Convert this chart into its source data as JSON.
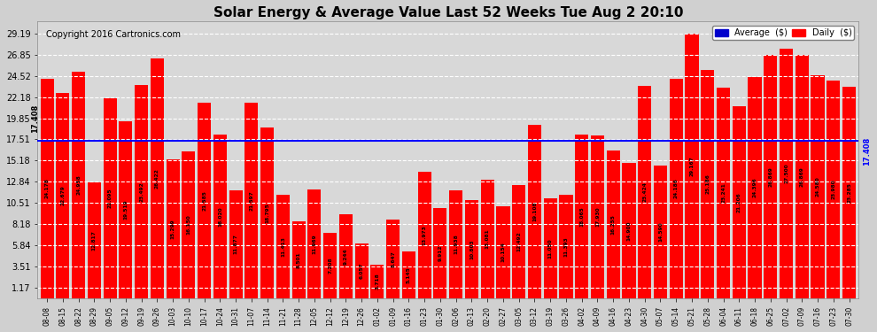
{
  "title": "Solar Energy & Average Value Last 52 Weeks Tue Aug 2 20:10",
  "copyright": "Copyright 2016 Cartronics.com",
  "average_line": 17.408,
  "average_label": "17.408",
  "bar_color": "#ff0000",
  "average_line_color": "#0000ff",
  "background_color": "#d0d0d0",
  "plot_bg_color": "#d8d8d8",
  "grid_color": "#ffffff",
  "yticks": [
    1.17,
    3.51,
    5.84,
    8.18,
    10.51,
    12.84,
    15.18,
    17.51,
    19.85,
    22.18,
    24.52,
    26.85,
    29.19
  ],
  "legend_avg_color": "#0000cc",
  "legend_daily_color": "#ff0000",
  "categories": [
    "08-08",
    "08-15",
    "08-22",
    "08-29",
    "09-05",
    "09-12",
    "09-19",
    "09-26",
    "10-03",
    "10-10",
    "10-17",
    "10-24",
    "10-31",
    "11-07",
    "11-14",
    "11-21",
    "11-28",
    "12-05",
    "12-12",
    "12-19",
    "12-26",
    "01-02",
    "01-09",
    "01-16",
    "01-23",
    "01-30",
    "02-06",
    "02-13",
    "02-20",
    "02-27",
    "03-05",
    "03-12",
    "03-19",
    "03-26",
    "04-02",
    "04-09",
    "04-16",
    "04-23",
    "04-30",
    "05-07",
    "05-14",
    "05-21",
    "05-28",
    "06-04",
    "06-11",
    "06-18",
    "06-25",
    "07-02",
    "07-09",
    "07-16",
    "07-23",
    "07-30"
  ],
  "values": [
    24.178,
    22.679,
    24.958,
    12.817,
    22.095,
    19.519,
    23.492,
    26.422,
    15.299,
    16.15,
    21.585,
    18.02,
    11.877,
    21.597,
    18.795,
    11.413,
    8.501,
    11.969,
    7.208,
    9.244,
    6.057,
    3.718,
    8.647,
    5.145,
    13.973,
    9.912,
    11.938,
    10.803,
    13.081,
    10.154,
    12.492,
    19.108,
    11.05,
    11.393,
    18.065,
    17.93,
    16.255,
    14.9,
    23.424,
    14.59,
    24.186,
    29.167,
    25.186,
    23.241,
    21.206,
    24.396,
    26.869,
    27.5,
    26.869,
    24.58,
    23.98,
    23.285
  ],
  "figwidth": 9.9,
  "figheight": 3.75,
  "dpi": 100
}
